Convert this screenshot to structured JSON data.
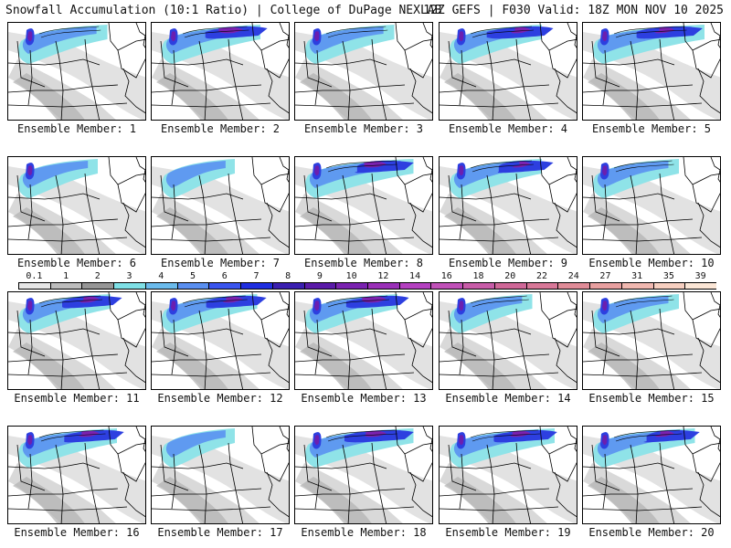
{
  "header": {
    "title_left": "Snowfall Accumulation (10:1 Ratio) | College of DuPage NEXLAB",
    "title_right": "12Z GEFS | F030 Valid: 18Z MON NOV 10 2025"
  },
  "panels": [
    {
      "label": "Ensemble Member: 1",
      "intensity": 0.55
    },
    {
      "label": "Ensemble Member: 2",
      "intensity": 0.7
    },
    {
      "label": "Ensemble Member: 3",
      "intensity": 0.55
    },
    {
      "label": "Ensemble Member: 4",
      "intensity": 0.6
    },
    {
      "label": "Ensemble Member: 5",
      "intensity": 0.9
    },
    {
      "label": "Ensemble Member: 6",
      "intensity": 0.4
    },
    {
      "label": "Ensemble Member: 7",
      "intensity": 0.3
    },
    {
      "label": "Ensemble Member: 8",
      "intensity": 0.85
    },
    {
      "label": "Ensemble Member: 9",
      "intensity": 0.6
    },
    {
      "label": "Ensemble Member: 10",
      "intensity": 0.5
    },
    {
      "label": "Ensemble Member: 11",
      "intensity": 0.6
    },
    {
      "label": "Ensemble Member: 12",
      "intensity": 0.65
    },
    {
      "label": "Ensemble Member: 13",
      "intensity": 0.6
    },
    {
      "label": "Ensemble Member: 14",
      "intensity": 0.45
    },
    {
      "label": "Ensemble Member: 15",
      "intensity": 0.5
    },
    {
      "label": "Ensemble Member: 16",
      "intensity": 0.7
    },
    {
      "label": "Ensemble Member: 17",
      "intensity": 0.3
    },
    {
      "label": "Ensemble Member: 18",
      "intensity": 0.85
    },
    {
      "label": "Ensemble Member: 19",
      "intensity": 0.8
    },
    {
      "label": "Ensemble Member: 20",
      "intensity": 0.75
    }
  ],
  "colorbar": {
    "labels": [
      "0.1",
      "1",
      "2",
      "3",
      "4",
      "5",
      "6",
      "7",
      "8",
      "9",
      "10",
      "12",
      "14",
      "16",
      "18",
      "20",
      "22",
      "24",
      "27",
      "31",
      "35",
      "39"
    ],
    "colors": [
      "#e6e6e6",
      "#bdbdbd",
      "#969696",
      "#7fe0e6",
      "#6bbbec",
      "#5a8ff0",
      "#3a55ee",
      "#1f2ee0",
      "#3a1fb0",
      "#5a1aa8",
      "#7a22b0",
      "#9a30b8",
      "#b440c0",
      "#c050b8",
      "#c85ca8",
      "#d06898",
      "#d87898",
      "#e08c98",
      "#e8a0a0",
      "#f0b8b0",
      "#f6cfc0",
      "#fbe6d6"
    ]
  }
}
